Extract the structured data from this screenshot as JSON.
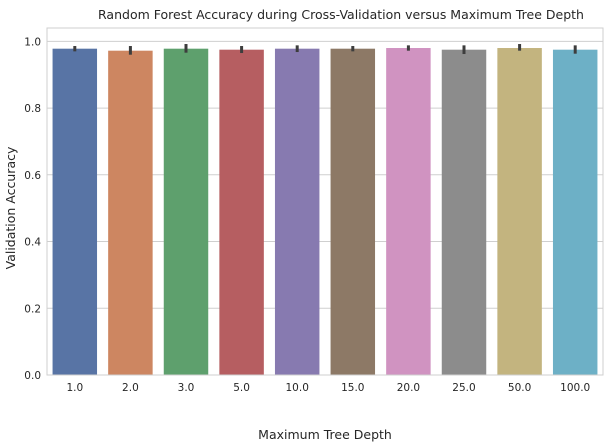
{
  "chart_data": {
    "type": "bar",
    "title": "Random Forest Accuracy during Cross-Validation versus Maximum Tree Depth",
    "xlabel": "Maximum Tree Depth",
    "ylabel": "Validation Accuracy",
    "ylim": [
      0,
      1.04
    ],
    "yticks": [
      "0.0",
      "0.2",
      "0.4",
      "0.6",
      "0.8",
      "1.0"
    ],
    "ytick_values": [
      0,
      0.2,
      0.4,
      0.6,
      0.8,
      1.0
    ],
    "grid": true,
    "categories": [
      "1.0",
      "2.0",
      "3.0",
      "5.0",
      "10.0",
      "15.0",
      "20.0",
      "25.0",
      "50.0",
      "100.0"
    ],
    "values": [
      0.978,
      0.972,
      0.978,
      0.975,
      0.978,
      0.978,
      0.98,
      0.975,
      0.98,
      0.975
    ],
    "error_low": [
      0.97,
      0.96,
      0.966,
      0.965,
      0.968,
      0.97,
      0.972,
      0.962,
      0.972,
      0.963
    ],
    "error_high": [
      0.986,
      0.986,
      0.992,
      0.986,
      0.988,
      0.986,
      0.988,
      0.988,
      0.992,
      0.988
    ],
    "colors": [
      "#5874a5",
      "#cd8661",
      "#5ea06d",
      "#b65e61",
      "#877ab0",
      "#8d7966",
      "#d093c1",
      "#8c8c8c",
      "#c3b47f",
      "#6db0c6"
    ]
  }
}
